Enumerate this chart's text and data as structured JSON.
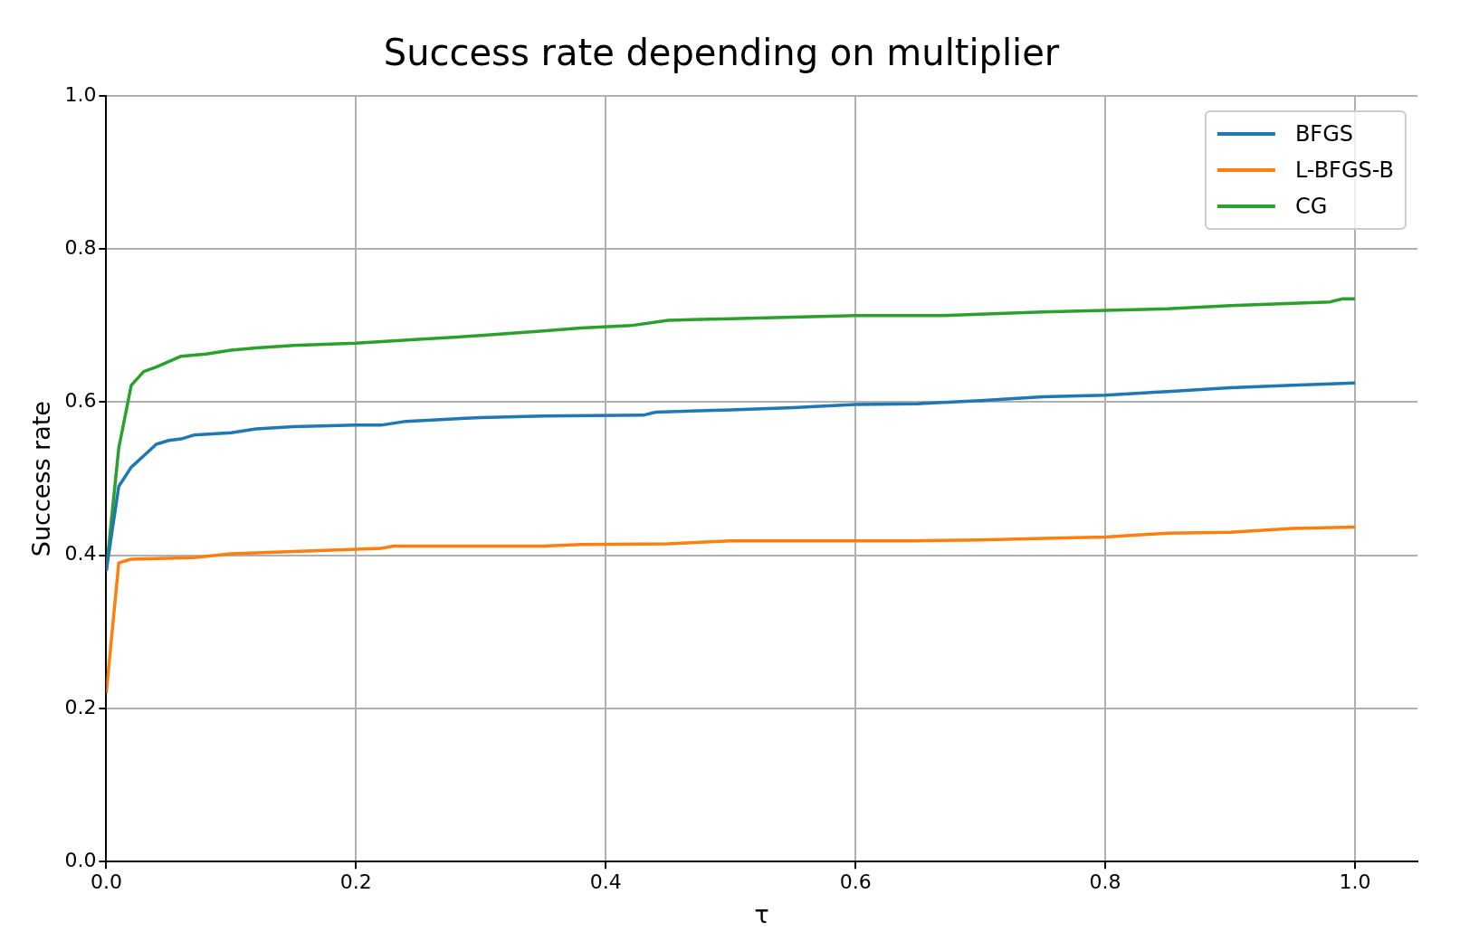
{
  "chart_data": {
    "type": "line",
    "title": "Success rate depending on multiplier",
    "xlabel": "τ",
    "ylabel": "Success rate",
    "xlim": [
      0,
      1.05
    ],
    "ylim": [
      0,
      1
    ],
    "xticks": [
      {
        "value": 0,
        "label": "0.0"
      },
      {
        "value": 0.2,
        "label": "0.2"
      },
      {
        "value": 0.4,
        "label": "0.4"
      },
      {
        "value": 0.6,
        "label": "0.6"
      },
      {
        "value": 0.8,
        "label": "0.8"
      },
      {
        "value": 1,
        "label": "1.0"
      }
    ],
    "yticks": [
      {
        "value": 0,
        "label": "0.0"
      },
      {
        "value": 0.2,
        "label": "0.2"
      },
      {
        "value": 0.4,
        "label": "0.4"
      },
      {
        "value": 0.6,
        "label": "0.6"
      },
      {
        "value": 0.8,
        "label": "0.8"
      },
      {
        "value": 1,
        "label": "1.0"
      }
    ],
    "grid": true,
    "legend": "top right",
    "marker": "none",
    "line_style": "solid",
    "series": [
      {
        "name": "BFGS",
        "color": "#1f77b4",
        "x": [
          0,
          0.01,
          0.02,
          0.03,
          0.04,
          0.05,
          0.06,
          0.07,
          0.1,
          0.12,
          0.15,
          0.2,
          0.22,
          0.24,
          0.3,
          0.35,
          0.43,
          0.44,
          0.5,
          0.55,
          0.6,
          0.65,
          0.7,
          0.75,
          0.8,
          0.85,
          0.9,
          0.95,
          1.0
        ],
        "values": [
          0.38,
          0.49,
          0.515,
          0.53,
          0.545,
          0.55,
          0.552,
          0.557,
          0.56,
          0.565,
          0.568,
          0.57,
          0.57,
          0.575,
          0.58,
          0.582,
          0.583,
          0.587,
          0.59,
          0.593,
          0.597,
          0.598,
          0.602,
          0.607,
          0.609,
          0.614,
          0.619,
          0.622,
          0.625
        ]
      },
      {
        "name": "L-BFGS-B",
        "color": "#ff7f0e",
        "x": [
          0,
          0.01,
          0.02,
          0.07,
          0.1,
          0.15,
          0.2,
          0.22,
          0.23,
          0.35,
          0.38,
          0.45,
          0.5,
          0.6,
          0.65,
          0.7,
          0.75,
          0.8,
          0.85,
          0.9,
          0.95,
          1.0
        ],
        "values": [
          0.22,
          0.39,
          0.395,
          0.397,
          0.402,
          0.405,
          0.408,
          0.409,
          0.412,
          0.412,
          0.414,
          0.415,
          0.419,
          0.419,
          0.419,
          0.42,
          0.422,
          0.424,
          0.429,
          0.43,
          0.435,
          0.437
        ]
      },
      {
        "name": "CG",
        "color": "#2ca02c",
        "x": [
          0,
          0.01,
          0.02,
          0.03,
          0.04,
          0.05,
          0.06,
          0.08,
          0.1,
          0.12,
          0.15,
          0.2,
          0.25,
          0.3,
          0.35,
          0.38,
          0.42,
          0.45,
          0.5,
          0.55,
          0.6,
          0.67,
          0.7,
          0.75,
          0.8,
          0.85,
          0.9,
          0.95,
          0.98,
          0.99,
          1.0
        ],
        "values": [
          0.38,
          0.54,
          0.622,
          0.64,
          0.646,
          0.653,
          0.66,
          0.663,
          0.668,
          0.671,
          0.674,
          0.677,
          0.682,
          0.687,
          0.693,
          0.697,
          0.7,
          0.707,
          0.709,
          0.711,
          0.713,
          0.713,
          0.715,
          0.718,
          0.72,
          0.722,
          0.726,
          0.729,
          0.731,
          0.735,
          0.735
        ]
      }
    ]
  }
}
